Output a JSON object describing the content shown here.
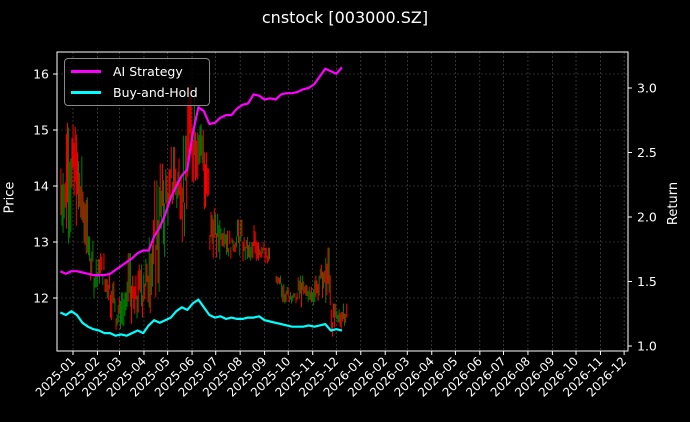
{
  "title": "cnstock [003000.SZ]",
  "legend": {
    "items": [
      {
        "label": "AI Strategy",
        "color": "#ff00ff"
      },
      {
        "label": "Buy-and-Hold",
        "color": "#00ffff"
      }
    ]
  },
  "axes": {
    "left_label": "Price",
    "right_label": "Return",
    "left_ticks": [
      "12",
      "13",
      "14",
      "15",
      "16"
    ],
    "right_ticks": [
      "1.0",
      "1.5",
      "2.0",
      "2.5",
      "3.0"
    ],
    "x_ticks": [
      "2025-01",
      "2025-02",
      "2025-03",
      "2025-04",
      "2025-05",
      "2025-06",
      "2025-07",
      "2025-08",
      "2025-09",
      "2025-10",
      "2025-11",
      "2025-12",
      "2026-01",
      "2026-02",
      "2026-03",
      "2026-04",
      "2026-05",
      "2026-06",
      "2026-07",
      "2026-08",
      "2026-09",
      "2026-10",
      "2026-11",
      "2026-12"
    ]
  },
  "colors": {
    "background": "#000000",
    "up_candle": "#008000",
    "down_candle": "#ff0000",
    "grid": "#555555",
    "axis": "#ffffff"
  },
  "chart_data": {
    "type": "line",
    "title": "cnstock [003000.SZ]",
    "xlabel": "",
    "ylabel": "Price",
    "y2label": "Return",
    "ylim": [
      11.1,
      16.4
    ],
    "y2lim": [
      0.98,
      3.27
    ],
    "xlim": [
      "2024-12-13",
      "2026-12-20"
    ],
    "grid": true,
    "legend_position": "upper left",
    "x_ticks": [
      "2025-01",
      "2025-02",
      "2025-03",
      "2025-04",
      "2025-05",
      "2025-06",
      "2025-07",
      "2025-08",
      "2025-09",
      "2025-10",
      "2025-11",
      "2025-12",
      "2026-01",
      "2026-02",
      "2026-03",
      "2026-04",
      "2026-05",
      "2026-06",
      "2026-07",
      "2026-08",
      "2026-09",
      "2026-10",
      "2026-11",
      "2026-12"
    ],
    "candles": {
      "note": "approximate weekly price ranges (low, high) read from candlestick panel",
      "x": [
        "2024-12-16",
        "2024-12-23",
        "2024-12-30",
        "2025-01-06",
        "2025-01-13",
        "2025-01-20",
        "2025-01-27",
        "2025-02-03",
        "2025-02-10",
        "2025-02-17",
        "2025-02-24",
        "2025-03-03",
        "2025-03-10",
        "2025-03-17",
        "2025-03-24",
        "2025-03-31",
        "2025-04-07",
        "2025-04-14",
        "2025-04-21",
        "2025-04-28",
        "2025-05-05",
        "2025-05-12",
        "2025-05-19",
        "2025-05-26",
        "2025-06-02",
        "2025-06-09",
        "2025-06-16",
        "2025-06-23",
        "2025-06-30",
        "2025-07-07",
        "2025-07-14",
        "2025-07-21",
        "2025-07-28",
        "2025-08-04",
        "2025-08-11",
        "2025-08-18",
        "2025-08-25",
        "2025-09-01",
        "2025-09-08",
        "2025-09-15",
        "2025-09-22",
        "2025-09-29",
        "2025-10-06",
        "2025-10-13",
        "2025-10-20",
        "2025-10-27",
        "2025-11-03",
        "2025-11-10",
        "2025-11-17",
        "2025-11-24",
        "2025-12-01",
        "2025-12-08"
      ],
      "low": [
        13.1,
        12.9,
        13.2,
        13.0,
        12.6,
        12.3,
        12.0,
        12.2,
        11.9,
        11.6,
        11.4,
        11.3,
        11.5,
        11.4,
        11.6,
        11.8,
        11.7,
        11.9,
        12.6,
        13.2,
        13.5,
        13.4,
        12.9,
        13.8,
        14.0,
        14.1,
        13.2,
        12.7,
        12.6,
        12.9,
        12.7,
        12.8,
        12.7,
        12.6,
        12.5,
        12.6,
        12.7,
        12.5,
        12.6,
        12.1,
        11.9,
        11.9,
        11.9,
        11.8,
        11.9,
        11.8,
        11.9,
        12.0,
        11.7,
        11.3,
        11.4,
        11.5
      ],
      "high": [
        14.4,
        15.3,
        15.1,
        14.6,
        13.9,
        13.1,
        12.7,
        12.8,
        12.6,
        12.3,
        12.0,
        12.1,
        12.8,
        12.4,
        12.6,
        12.7,
        13.4,
        14.1,
        14.4,
        14.3,
        14.7,
        14.5,
        14.9,
        15.8,
        15.7,
        15.2,
        14.6,
        13.6,
        13.5,
        13.3,
        13.2,
        13.1,
        13.4,
        13.1,
        13.0,
        13.3,
        13.0,
        12.9,
        12.6,
        12.4,
        12.3,
        12.2,
        12.1,
        12.4,
        12.3,
        12.2,
        12.4,
        12.6,
        12.9,
        11.9,
        11.8,
        11.9
      ]
    },
    "series": [
      {
        "name": "AI Strategy",
        "axis": "right",
        "color": "#ff00ff",
        "x": [
          "2024-12-16",
          "2024-12-23",
          "2024-12-30",
          "2025-01-06",
          "2025-01-13",
          "2025-01-20",
          "2025-01-27",
          "2025-02-03",
          "2025-02-10",
          "2025-02-17",
          "2025-02-24",
          "2025-03-03",
          "2025-03-10",
          "2025-03-17",
          "2025-03-24",
          "2025-03-31",
          "2025-04-07",
          "2025-04-14",
          "2025-04-21",
          "2025-04-28",
          "2025-05-05",
          "2025-05-12",
          "2025-05-19",
          "2025-05-26",
          "2025-06-02",
          "2025-06-09",
          "2025-06-16",
          "2025-06-23",
          "2025-06-30",
          "2025-07-07",
          "2025-07-14",
          "2025-07-21",
          "2025-07-28",
          "2025-08-04",
          "2025-08-11",
          "2025-08-18",
          "2025-08-25",
          "2025-09-01",
          "2025-09-08",
          "2025-09-15",
          "2025-09-22",
          "2025-09-29",
          "2025-10-06",
          "2025-10-13",
          "2025-10-20",
          "2025-10-27",
          "2025-11-03",
          "2025-11-10",
          "2025-11-17",
          "2025-11-24",
          "2025-12-01",
          "2025-12-08"
        ],
        "values": [
          1.58,
          1.56,
          1.58,
          1.58,
          1.57,
          1.56,
          1.55,
          1.55,
          1.55,
          1.56,
          1.59,
          1.62,
          1.65,
          1.68,
          1.72,
          1.74,
          1.74,
          1.85,
          1.92,
          2.02,
          2.15,
          2.24,
          2.32,
          2.37,
          2.65,
          2.85,
          2.82,
          2.72,
          2.73,
          2.77,
          2.79,
          2.79,
          2.84,
          2.87,
          2.88,
          2.95,
          2.94,
          2.91,
          2.92,
          2.91,
          2.95,
          2.96,
          2.96,
          2.97,
          2.99,
          3.0,
          3.03,
          3.09,
          3.15,
          3.13,
          3.11,
          3.16
        ]
      },
      {
        "name": "Buy-and-Hold",
        "axis": "right",
        "color": "#00ffff",
        "x": [
          "2024-12-16",
          "2024-12-23",
          "2024-12-30",
          "2025-01-06",
          "2025-01-13",
          "2025-01-20",
          "2025-01-27",
          "2025-02-03",
          "2025-02-10",
          "2025-02-17",
          "2025-02-24",
          "2025-03-03",
          "2025-03-10",
          "2025-03-17",
          "2025-03-24",
          "2025-03-31",
          "2025-04-07",
          "2025-04-14",
          "2025-04-21",
          "2025-04-28",
          "2025-05-05",
          "2025-05-12",
          "2025-05-19",
          "2025-05-26",
          "2025-06-02",
          "2025-06-09",
          "2025-06-16",
          "2025-06-23",
          "2025-06-30",
          "2025-07-07",
          "2025-07-14",
          "2025-07-21",
          "2025-07-28",
          "2025-08-04",
          "2025-08-11",
          "2025-08-18",
          "2025-08-25",
          "2025-09-01",
          "2025-09-08",
          "2025-09-15",
          "2025-09-22",
          "2025-09-29",
          "2025-10-06",
          "2025-10-13",
          "2025-10-20",
          "2025-10-27",
          "2025-11-03",
          "2025-11-10",
          "2025-11-17",
          "2025-11-24",
          "2025-12-01",
          "2025-12-08"
        ],
        "values": [
          1.26,
          1.24,
          1.27,
          1.24,
          1.18,
          1.15,
          1.13,
          1.12,
          1.1,
          1.1,
          1.08,
          1.09,
          1.08,
          1.1,
          1.12,
          1.1,
          1.16,
          1.2,
          1.18,
          1.2,
          1.22,
          1.27,
          1.3,
          1.28,
          1.33,
          1.36,
          1.3,
          1.24,
          1.22,
          1.23,
          1.21,
          1.22,
          1.21,
          1.21,
          1.22,
          1.22,
          1.23,
          1.2,
          1.19,
          1.18,
          1.17,
          1.16,
          1.15,
          1.15,
          1.15,
          1.16,
          1.15,
          1.16,
          1.17,
          1.12,
          1.13,
          1.12
        ]
      }
    ]
  }
}
